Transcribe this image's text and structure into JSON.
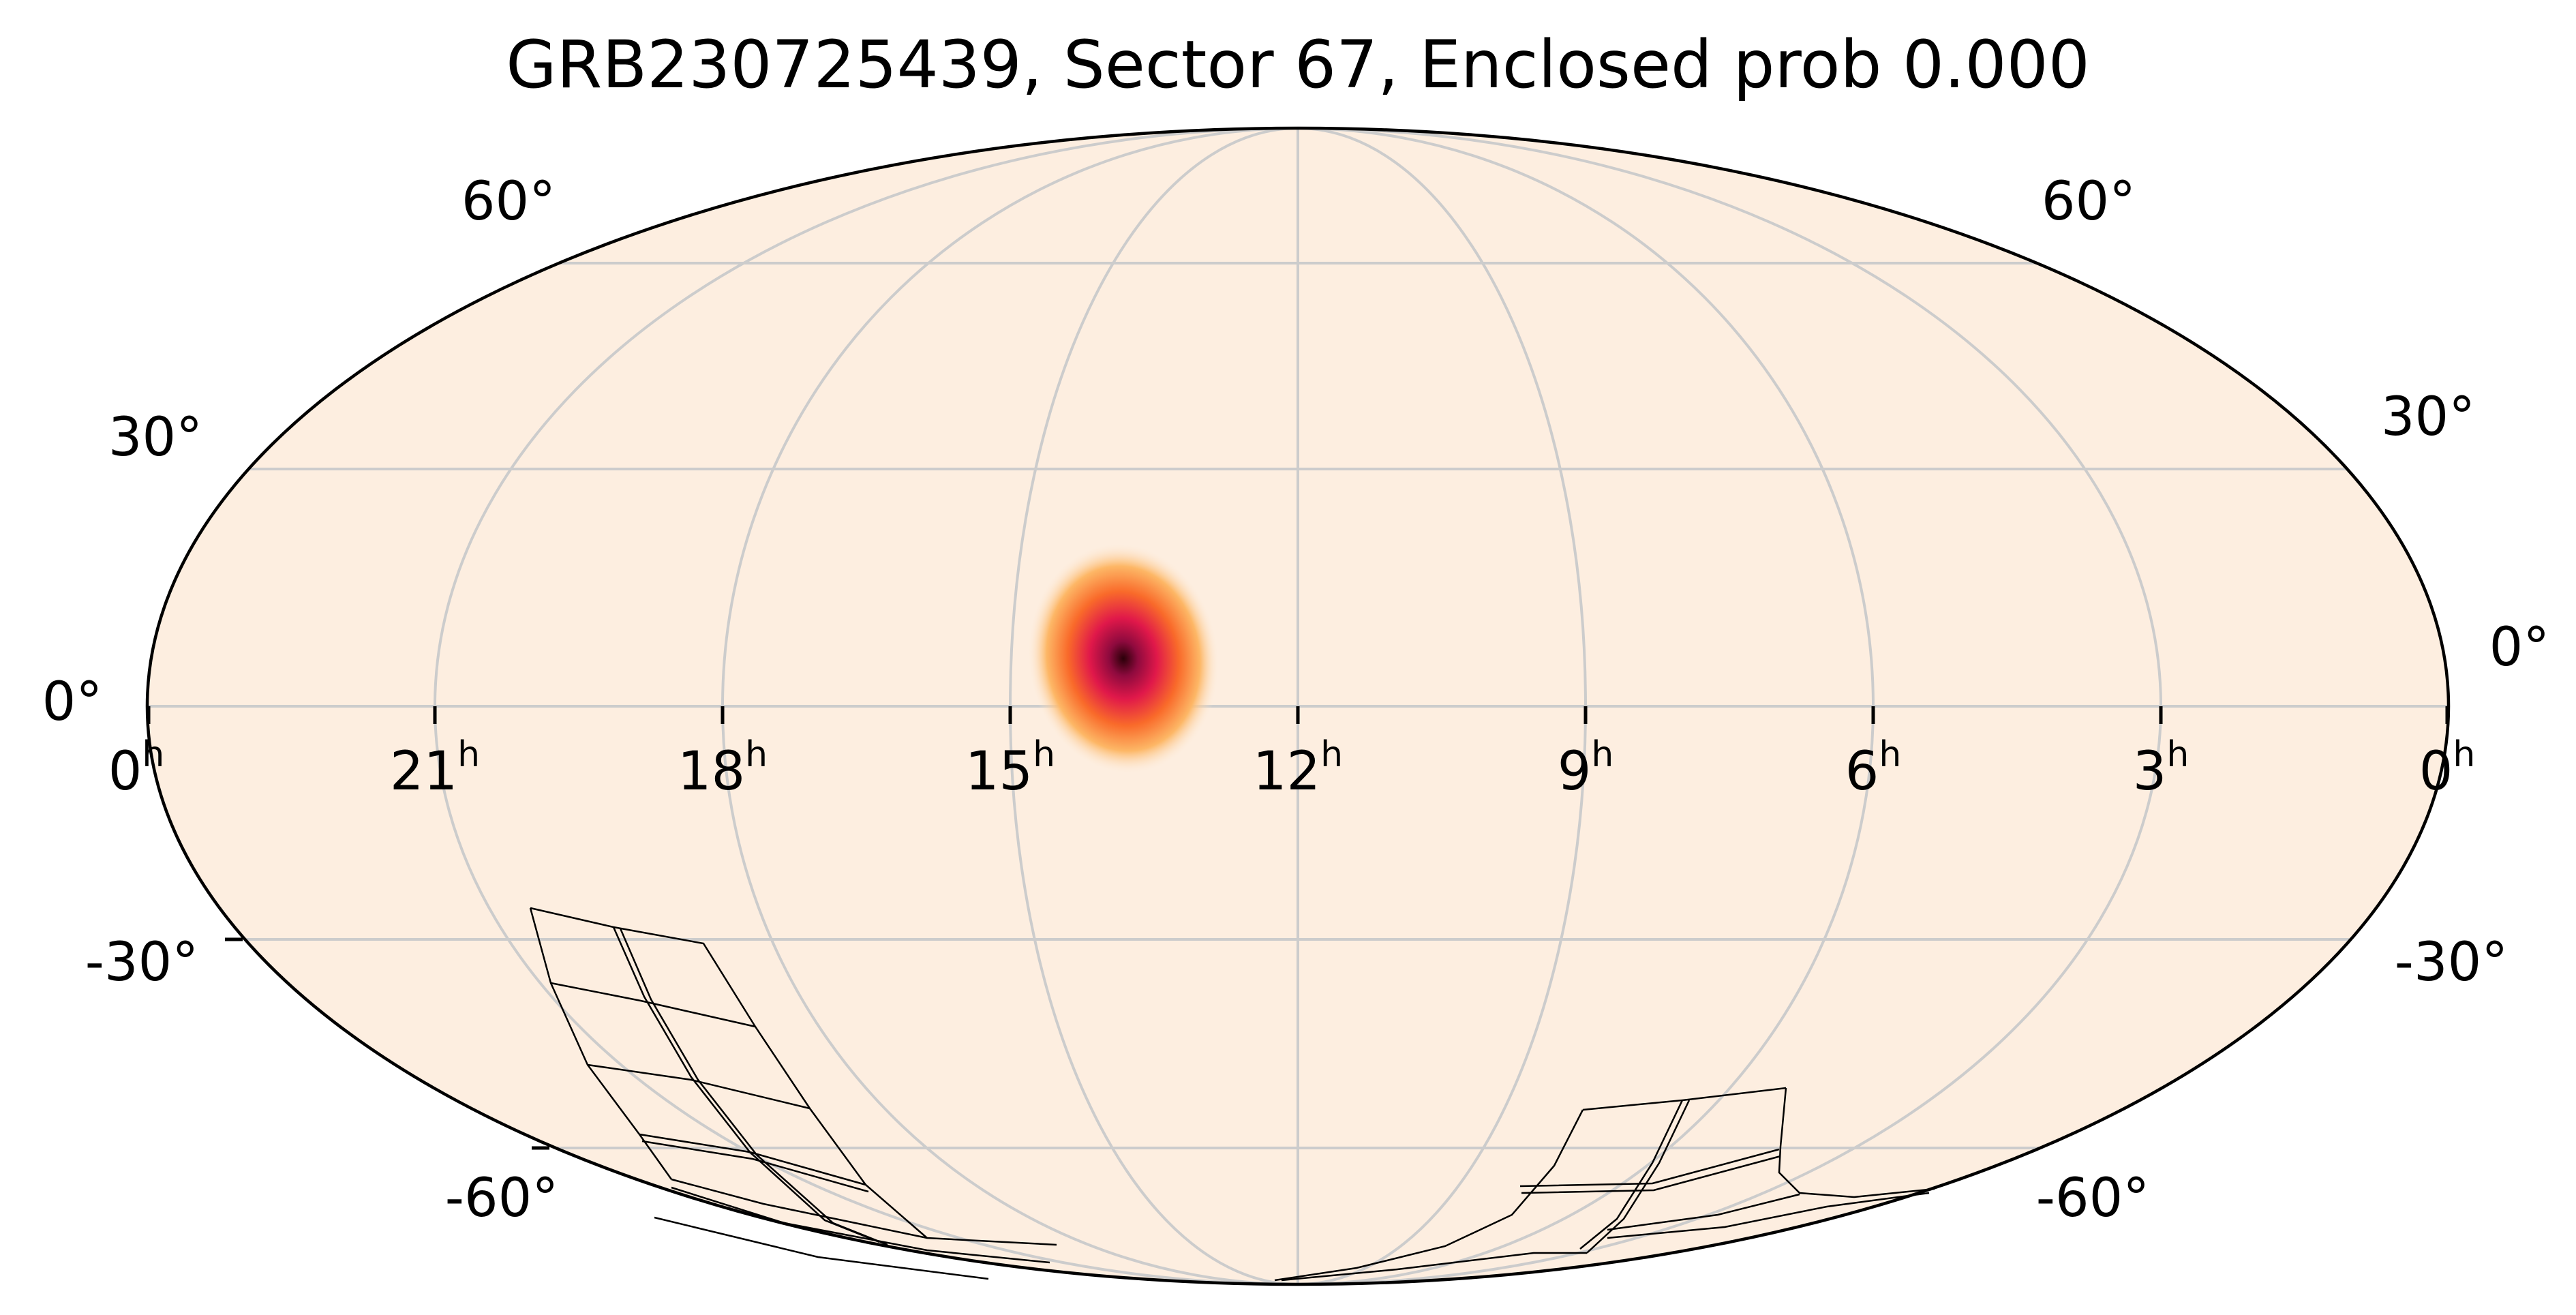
{
  "title": "GRB230725439, Sector 67, Enclosed prob 0.000",
  "colors": {
    "background": "#fdeee0",
    "grid": "#cccccc",
    "frame": "#000000",
    "footprint": "#000000",
    "hotspot_colormap": [
      "#fdeee0",
      "#fdb766",
      "#f96a2a",
      "#e0184a",
      "#8e0a3e",
      "#2a0008"
    ]
  },
  "projection": "mollweide",
  "ra_hour_labels": [
    {
      "hour": "0",
      "suffix": "h",
      "side": "left"
    },
    {
      "hour": "21",
      "suffix": "h"
    },
    {
      "hour": "18",
      "suffix": "h"
    },
    {
      "hour": "15",
      "suffix": "h"
    },
    {
      "hour": "12",
      "suffix": "h"
    },
    {
      "hour": "9",
      "suffix": "h"
    },
    {
      "hour": "6",
      "suffix": "h"
    },
    {
      "hour": "3",
      "suffix": "h"
    },
    {
      "hour": "0",
      "suffix": "h",
      "side": "right"
    }
  ],
  "dec_labels": [
    "60°",
    "30°",
    "0°",
    "-30°",
    "-60°"
  ],
  "hotspot": {
    "ra_hours": 13.4,
    "dec_deg": 2
  }
}
